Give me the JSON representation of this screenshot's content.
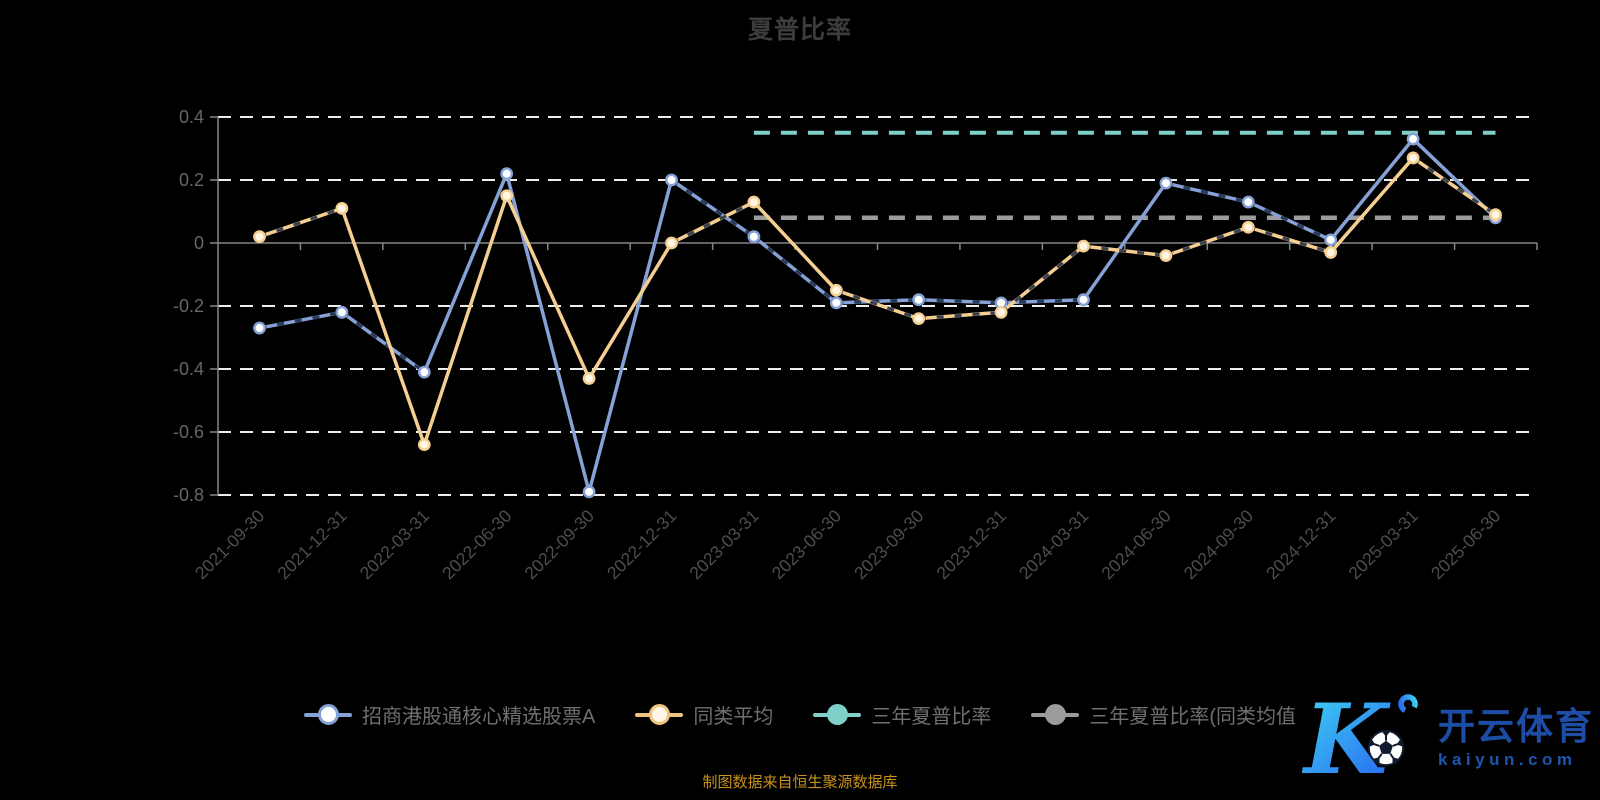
{
  "title": "夏普比率",
  "caption": "制图数据来自恒生聚源数据库",
  "watermark": {
    "logo_letter": "K",
    "brand": "开云体育",
    "domain": "kaiyun.com"
  },
  "legend": {
    "items": [
      {
        "label": "招商港股通核心精选股票A",
        "color": "#85a1d6",
        "marker": "ring",
        "dot_fill": "#ffffff"
      },
      {
        "label": "同类平均",
        "color": "#f0c47e",
        "marker": "ring",
        "dot_fill": "#fff8ea"
      },
      {
        "label": "三年夏普比率",
        "color": "#7fd0c9",
        "marker": "solid",
        "dot_fill": "#7fd0c9"
      },
      {
        "label": "三年夏普比率(同类均值",
        "color": "#9b9b9b",
        "marker": "solid",
        "dot_fill": "#9b9b9b"
      }
    ]
  },
  "colors": {
    "fund_line": "#85a1d6",
    "average_line": "#f5cf92",
    "three_year_line": "#7fd0c9",
    "three_year_avg_line": "#9c9c9c",
    "gridline": "#ededed",
    "axis": "#858585",
    "x_label": "#4d4d4d",
    "y_label": "#666666",
    "dash_overlay": "#182844"
  },
  "chart_data": {
    "type": "line",
    "title": "夏普比率",
    "xlabel": "",
    "ylabel": "",
    "ylim": [
      -0.8,
      0.4
    ],
    "y_ticks": [
      0.4,
      0.2,
      0,
      -0.2,
      -0.4,
      -0.6,
      -0.8
    ],
    "grid": "horizontal-dashed",
    "legend_position": "bottom",
    "categories": [
      "2021-09-30",
      "2021-12-31",
      "2022-03-31",
      "2022-06-30",
      "2022-09-30",
      "2022-12-31",
      "2023-03-31",
      "2023-06-30",
      "2023-09-30",
      "2023-12-31",
      "2024-03-31",
      "2024-06-30",
      "2024-09-30",
      "2024-12-31",
      "2025-03-31",
      "2025-06-30"
    ],
    "series": [
      {
        "name": "招商港股通核心精选股票A",
        "style": "line",
        "color": "#85a1d6",
        "marker_fill": "#ffffff",
        "values": [
          -0.27,
          -0.22,
          -0.41,
          0.22,
          -0.79,
          0.2,
          0.02,
          -0.19,
          -0.18,
          -0.19,
          -0.18,
          0.19,
          0.13,
          0.01,
          0.33,
          0.08
        ]
      },
      {
        "name": "同类平均",
        "style": "line",
        "color": "#f5cf92",
        "marker_fill": "#fff6e4",
        "values": [
          0.02,
          0.11,
          -0.64,
          0.15,
          -0.43,
          0.0,
          0.13,
          -0.15,
          -0.24,
          -0.22,
          -0.01,
          -0.04,
          0.05,
          -0.03,
          0.27,
          0.09
        ]
      },
      {
        "name": "三年夏普比率",
        "style": "dashed-constant",
        "color": "#7fd0c9",
        "value": 0.35,
        "start_category": "2023-03-31",
        "end_category": "2025-06-30"
      },
      {
        "name": "三年夏普比率(同类均值)",
        "style": "dashed-constant",
        "color": "#9c9c9c",
        "value": 0.08,
        "start_category": "2023-03-31",
        "end_category": "2025-06-30"
      }
    ]
  }
}
